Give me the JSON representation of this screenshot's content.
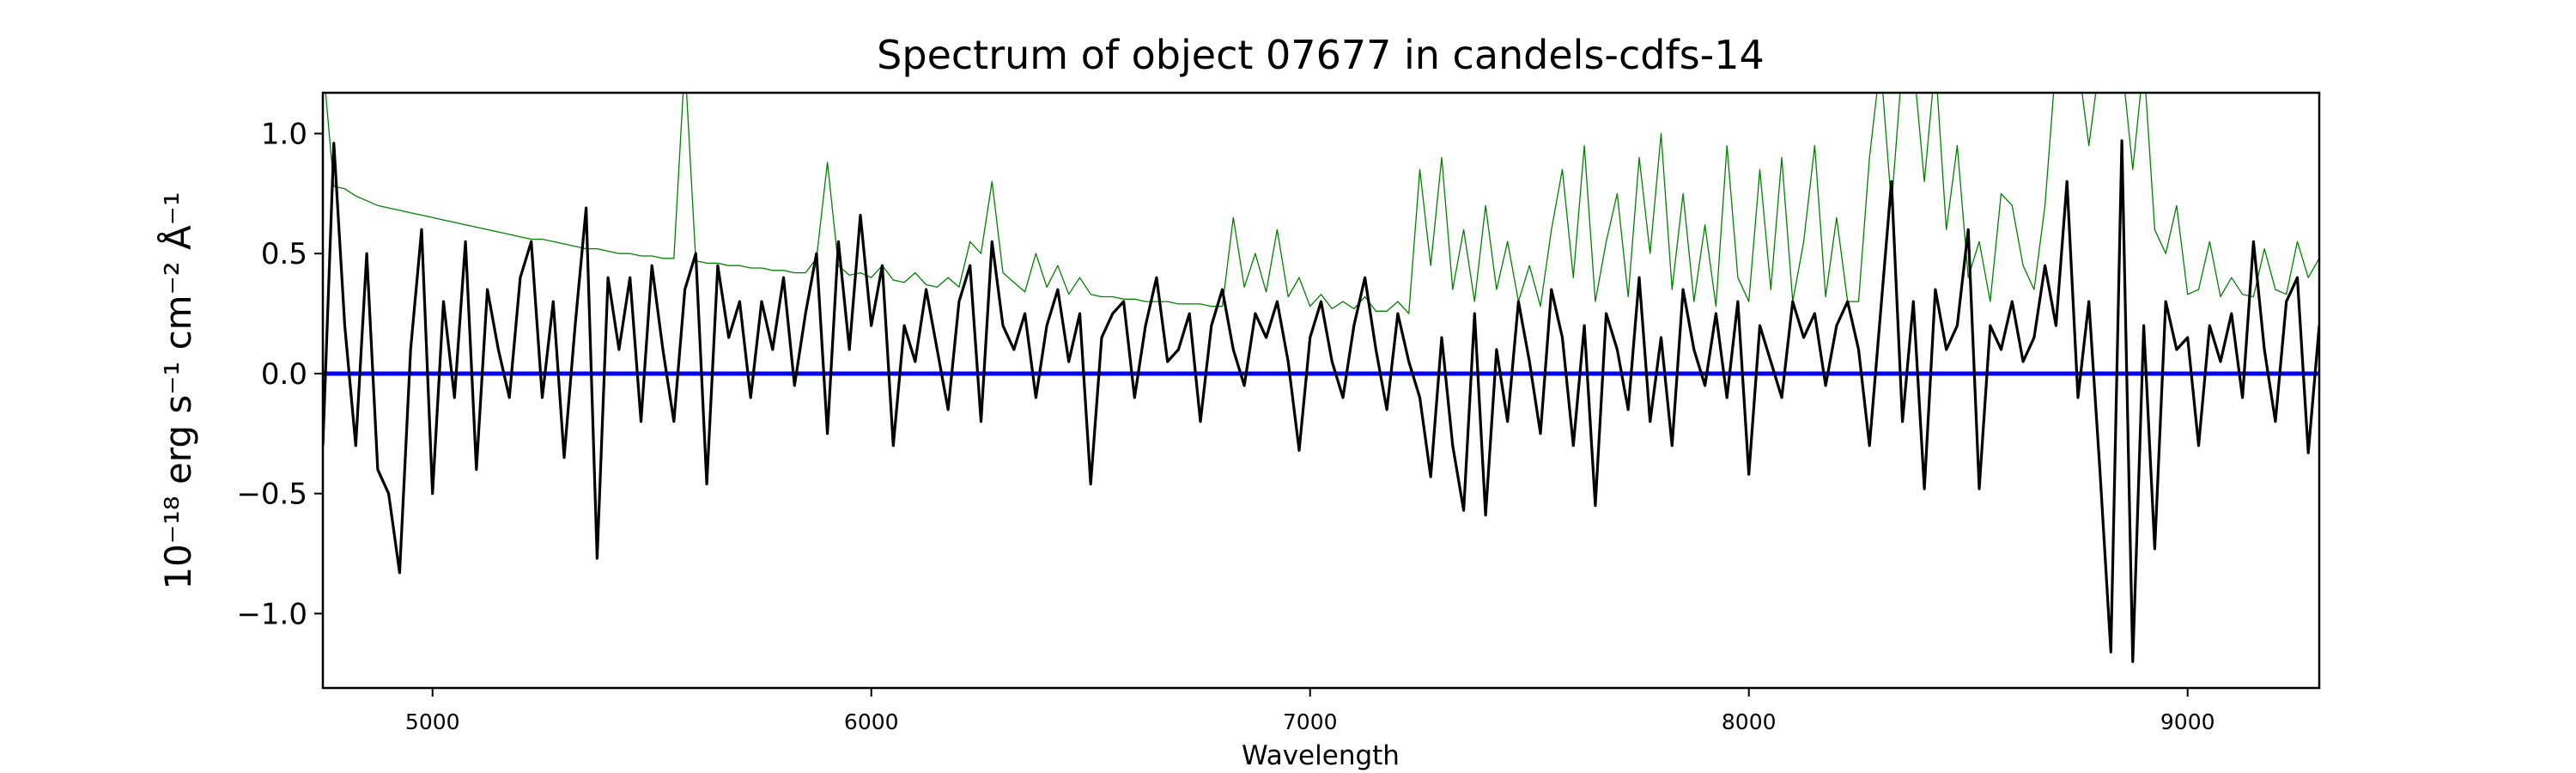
{
  "chart_data": {
    "type": "line",
    "title": "Spectrum of object 07677 in candels-cdfs-14",
    "xlabel": "Wavelength",
    "ylabel": "10⁻¹⁸ erg s⁻¹ cm⁻² Å⁻¹",
    "xlim": [
      4750,
      9300
    ],
    "ylim": [
      -1.31,
      1.17
    ],
    "xticks": [
      5000,
      6000,
      7000,
      8000,
      9000
    ],
    "xtick_labels": [
      "5000",
      "6000",
      "7000",
      "8000",
      "9000"
    ],
    "yticks": [
      -1.0,
      -0.5,
      0.0,
      0.5,
      1.0
    ],
    "ytick_labels": [
      "−1.0",
      "−0.5",
      "0.0",
      "0.5",
      "1.0"
    ],
    "grid": false,
    "x_start": 4750,
    "x_step": 25,
    "series": [
      {
        "role": "flux",
        "color": "#000000",
        "values": [
          -0.3,
          0.96,
          0.2,
          -0.3,
          0.5,
          -0.4,
          -0.5,
          -0.83,
          0.1,
          0.6,
          -0.5,
          0.3,
          -0.1,
          0.55,
          -0.4,
          0.35,
          0.1,
          -0.1,
          0.4,
          0.55,
          -0.1,
          0.3,
          -0.35,
          0.2,
          0.69,
          -0.77,
          0.4,
          0.1,
          0.4,
          -0.2,
          0.45,
          0.1,
          -0.2,
          0.35,
          0.5,
          -0.46,
          0.45,
          0.15,
          0.3,
          -0.1,
          0.3,
          0.1,
          0.4,
          -0.05,
          0.25,
          0.5,
          -0.25,
          0.55,
          0.1,
          0.66,
          0.2,
          0.45,
          -0.3,
          0.2,
          0.05,
          0.35,
          0.1,
          -0.15,
          0.3,
          0.45,
          -0.2,
          0.55,
          0.2,
          0.1,
          0.25,
          -0.1,
          0.2,
          0.35,
          0.05,
          0.25,
          -0.46,
          0.15,
          0.25,
          0.3,
          -0.1,
          0.2,
          0.4,
          0.05,
          0.1,
          0.25,
          -0.2,
          0.2,
          0.35,
          0.1,
          -0.05,
          0.25,
          0.15,
          0.3,
          0.05,
          -0.32,
          0.15,
          0.3,
          0.05,
          -0.1,
          0.2,
          0.4,
          0.1,
          -0.15,
          0.25,
          0.05,
          -0.1,
          -0.43,
          0.15,
          -0.3,
          -0.57,
          0.25,
          -0.59,
          0.1,
          -0.2,
          0.3,
          0.05,
          -0.25,
          0.35,
          0.15,
          -0.3,
          0.2,
          -0.55,
          0.25,
          0.1,
          -0.15,
          0.4,
          -0.2,
          0.15,
          -0.3,
          0.35,
          0.1,
          -0.05,
          0.25,
          -0.1,
          0.3,
          -0.42,
          0.2,
          0.05,
          -0.1,
          0.3,
          0.15,
          0.25,
          -0.05,
          0.2,
          0.3,
          0.1,
          -0.3,
          0.25,
          0.8,
          -0.2,
          0.3,
          -0.48,
          0.35,
          0.1,
          0.2,
          0.6,
          -0.48,
          0.2,
          0.1,
          0.3,
          0.05,
          0.15,
          0.45,
          0.2,
          0.8,
          -0.1,
          0.3,
          -0.4,
          -1.16,
          0.97,
          -1.2,
          0.2,
          -0.73,
          0.3,
          0.1,
          0.15,
          -0.3,
          0.2,
          0.05,
          0.25,
          -0.1,
          0.55,
          0.1,
          -0.2,
          0.3,
          0.4,
          -0.33,
          0.2
        ]
      },
      {
        "role": "error",
        "color": "#008000",
        "values": [
          1.3,
          0.78,
          0.77,
          0.74,
          0.72,
          0.7,
          0.69,
          0.68,
          0.67,
          0.66,
          0.65,
          0.64,
          0.63,
          0.62,
          0.61,
          0.6,
          0.59,
          0.58,
          0.57,
          0.56,
          0.56,
          0.55,
          0.54,
          0.53,
          0.52,
          0.52,
          0.51,
          0.5,
          0.5,
          0.49,
          0.49,
          0.48,
          0.48,
          1.3,
          0.47,
          0.46,
          0.46,
          0.45,
          0.45,
          0.44,
          0.44,
          0.43,
          0.43,
          0.42,
          0.42,
          0.48,
          0.88,
          0.45,
          0.41,
          0.42,
          0.4,
          0.45,
          0.39,
          0.38,
          0.42,
          0.37,
          0.36,
          0.4,
          0.36,
          0.55,
          0.5,
          0.8,
          0.42,
          0.38,
          0.34,
          0.5,
          0.36,
          0.45,
          0.33,
          0.4,
          0.33,
          0.32,
          0.32,
          0.31,
          0.31,
          0.3,
          0.3,
          0.3,
          0.29,
          0.29,
          0.29,
          0.28,
          0.28,
          0.65,
          0.36,
          0.5,
          0.34,
          0.6,
          0.32,
          0.4,
          0.28,
          0.33,
          0.27,
          0.3,
          0.27,
          0.32,
          0.26,
          0.26,
          0.3,
          0.25,
          0.85,
          0.45,
          0.9,
          0.35,
          0.6,
          0.3,
          0.7,
          0.35,
          0.55,
          0.3,
          0.45,
          0.28,
          0.6,
          0.85,
          0.4,
          0.95,
          0.3,
          0.55,
          0.75,
          0.32,
          0.9,
          0.5,
          1.0,
          0.35,
          0.75,
          0.3,
          0.62,
          0.28,
          0.95,
          0.4,
          0.3,
          0.85,
          0.35,
          0.9,
          0.3,
          0.55,
          0.95,
          0.32,
          0.65,
          0.3,
          0.3,
          0.9,
          1.3,
          0.7,
          1.3,
          1.3,
          0.8,
          1.3,
          0.6,
          0.95,
          0.4,
          0.55,
          0.3,
          0.75,
          0.7,
          0.45,
          0.35,
          0.7,
          1.3,
          1.3,
          1.3,
          0.95,
          1.3,
          1.3,
          1.3,
          0.85,
          1.3,
          0.6,
          0.5,
          0.7,
          0.33,
          0.35,
          0.55,
          0.32,
          0.4,
          0.33,
          0.32,
          0.52,
          0.35,
          0.33,
          0.55,
          0.4,
          0.48
        ]
      },
      {
        "role": "zero",
        "color": "#0000ff",
        "y": 0.0
      }
    ]
  }
}
